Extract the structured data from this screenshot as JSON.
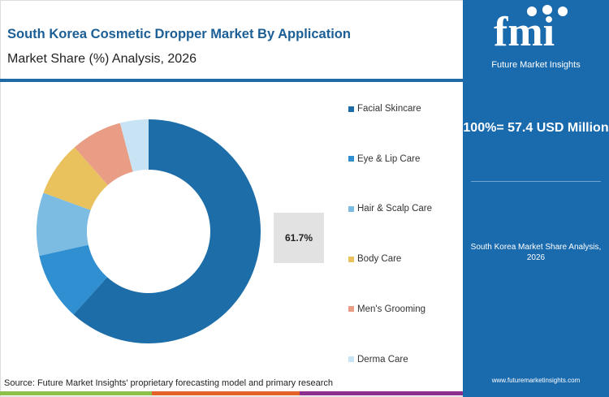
{
  "header": {
    "title": "South Korea Cosmetic Dropper Market By Application",
    "subtitle": "Market Share (%) Analysis, 2026"
  },
  "chart_data": {
    "type": "pie",
    "donut": true,
    "categories": [
      "Facial Skincare",
      "Eye & Lip Care",
      "Hair & Scalp Care",
      "Body Care",
      "Men's Grooming",
      "Derma Care"
    ],
    "values": [
      61.7,
      9.8,
      9.1,
      7.9,
      7.4,
      4.1
    ],
    "colors": [
      "#1c6da8",
      "#2f8fd1",
      "#7cbbe2",
      "#e9c25e",
      "#e99d84",
      "#c8e4f4"
    ],
    "data_labels": {
      "Facial Skincare": "61.7%"
    },
    "legend": "right"
  },
  "panel": {
    "logo_text": "Future Market Insights",
    "total": "100%= 57.4 USD Million",
    "caption": "South Korea Market Share Analysis, 2026",
    "url": "www.futuremarketinsights.com"
  },
  "footer": {
    "source": "Source: Future Market Insights' proprietary forecasting model and primary research",
    "bar_colors": [
      "#8cc04a",
      "#e2622a",
      "#8d2f8f"
    ]
  }
}
